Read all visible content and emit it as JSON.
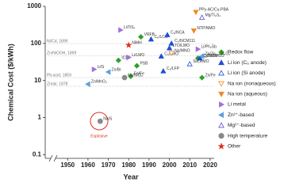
{
  "chart_data": {
    "type": "scatter",
    "xlabel": "Year",
    "ylabel": "Chemical Cost ($/kWh)",
    "log_y": true,
    "xlim": [
      1939,
      2022
    ],
    "ylim": [
      0.08,
      1000
    ],
    "xticks": [
      1950,
      1960,
      1970,
      1980,
      1990,
      2000,
      2010,
      2020
    ],
    "yticks": [
      0.1,
      1,
      10,
      100,
      1000
    ],
    "reference_lines": [
      {
        "label": "Ni/Cd, 1899",
        "y": 99
      },
      {
        "label": "Zn/NiOOH, 1899",
        "y": 47
      },
      {
        "label": "Pb-acid, 1859",
        "y": 12
      },
      {
        "label": "Zn/air, 1878",
        "y": 7
      }
    ],
    "annotation": "Explosive",
    "series": [
      {
        "name": "Redox flow",
        "color": "#2ca02c",
        "marker": "diamond",
        "filled": true,
        "x": [
          1975,
          1981,
          1984,
          1986,
          2014,
          2016
        ],
        "values": [
          35,
          13,
          25,
          150,
          40,
          12
        ],
        "labels": [
          "ICB",
          "Fe/Fe",
          "PSB",
          "VRFB",
          "AQDS/Br",
          "Zn/Fe"
        ]
      },
      {
        "name": "Li ion (C₆ anode)",
        "color": "#1f4fd8",
        "marker": "tri-up",
        "filled": true,
        "x": [
          1991,
          1996,
          1997,
          1999,
          2000,
          2001,
          2015
        ],
        "values": [
          130,
          45,
          18,
          170,
          75,
          100,
          40
        ],
        "labels": [
          "C₆/LCO",
          "C₆/LMO",
          "C₆/LFP",
          "C₆/NCA",
          "LTO/LMO",
          "C₆/NCM111",
          "C₆/NCM622"
        ]
      },
      {
        "name": "Li ion (Si anode)",
        "color": "#1f4fd8",
        "marker": "tri-up",
        "filled": false,
        "x": [
          2010
        ],
        "values": [
          28
        ],
        "labels": [
          "Si/LRMO"
        ]
      },
      {
        "name": "Na ion (nonaqueous)",
        "color": "#f08a24",
        "marker": "tri-down",
        "filled": false,
        "x": [
          2001
        ],
        "values": [
          55
        ],
        "labels": [
          "Na/MNO"
        ]
      },
      {
        "name": "Na ion (aqueous)",
        "color": "#f08a24",
        "marker": "tri-down",
        "filled": true,
        "x": [
          2012,
          2013
        ],
        "values": [
          220,
          700
        ],
        "labels": [
          "NTP/NMO",
          "PPy-AC/Cu-PBA"
        ]
      },
      {
        "name": "Li metal",
        "color": "#a070e0",
        "marker": "tri-right",
        "filled": true,
        "x": [
          1963,
          1976,
          1980,
          2014
        ],
        "values": [
          20,
          230,
          42,
          70
        ],
        "labels": [
          "Li/S",
          "Li/TiS₂",
          "Li/LMO",
          "Li/Ph₂Sb"
        ]
      },
      {
        "name": "Zn²⁺-based",
        "color": "#5aa0e0",
        "marker": "tri-left",
        "filled": true,
        "x": [
          1960,
          1970,
          2016
        ],
        "values": [
          8,
          17,
          45
        ],
        "labels": [
          "Zn/MnO₂",
          "Zn/Br",
          "Zn/Zn₀.₂₅V₂O₅"
        ]
      },
      {
        "name": "Mg²⁺-based",
        "color": "#6050c0",
        "marker": "tri-up",
        "filled": false,
        "x": [
          2016
        ],
        "values": [
          500
        ],
        "labels": [
          "Mg/Ti₂S₄"
        ]
      },
      {
        "name": "High temperature",
        "color": "#888888",
        "marker": "circle",
        "filled": true,
        "x": [
          1966,
          1978
        ],
        "values": [
          0.8,
          12
        ],
        "labels": [
          "Na/S",
          "Na/NiCl₂"
        ]
      },
      {
        "name": "Other",
        "color": "#e03020",
        "marker": "star",
        "filled": true,
        "x": [
          1980
        ],
        "values": [
          90
        ],
        "labels": [
          "NiMH"
        ]
      }
    ]
  }
}
